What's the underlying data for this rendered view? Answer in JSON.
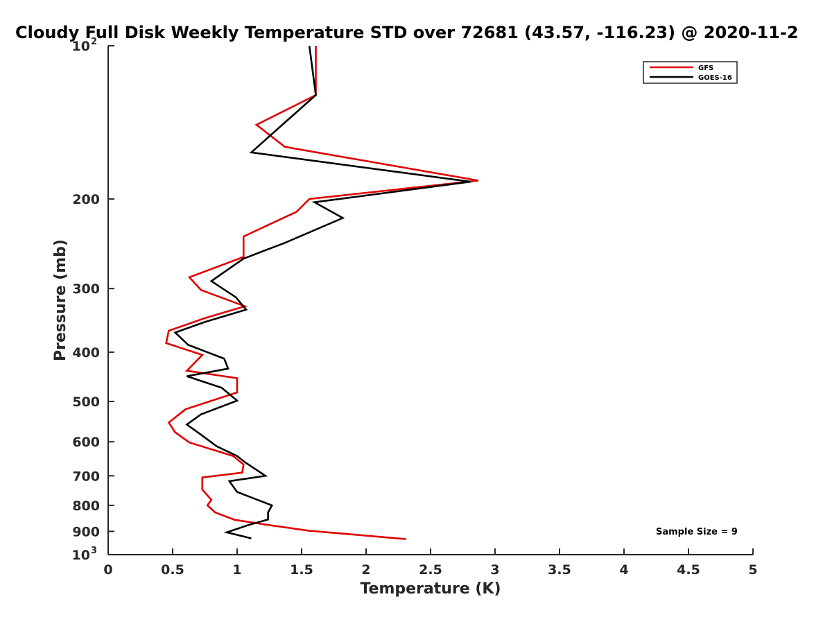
{
  "chart_data": {
    "type": "line",
    "title": "Cloudy Full Disk Weekly Temperature STD over 72681 (43.57, -116.23) @ 2020-11-2",
    "xlabel": "Temperature (K)",
    "ylabel": "Pressure (mb)",
    "xlim": [
      0,
      5
    ],
    "ylim": [
      100,
      1000
    ],
    "y_scale": "log",
    "y_reversed": true,
    "x_ticks": [
      "0",
      "0.5",
      "1",
      "1.5",
      "2",
      "2.5",
      "3",
      "3.5",
      "4",
      "4.5",
      "5"
    ],
    "y_ticks": [
      {
        "value": 100,
        "base": "10",
        "exp": "2"
      },
      {
        "value": 200,
        "label": "200"
      },
      {
        "value": 300,
        "label": "300"
      },
      {
        "value": 400,
        "label": "400"
      },
      {
        "value": 500,
        "label": "500"
      },
      {
        "value": 600,
        "label": "600"
      },
      {
        "value": 700,
        "label": "700"
      },
      {
        "value": 800,
        "label": "800"
      },
      {
        "value": 900,
        "label": "900"
      },
      {
        "value": 1000,
        "base": "10",
        "exp": "3"
      }
    ],
    "grid": false,
    "legend_position": "top-right",
    "annotation": "Sample Size = 9",
    "series": [
      {
        "name": "GFS",
        "color": "#e00000",
        "points": [
          [
            1.61,
            100
          ],
          [
            1.61,
            125
          ],
          [
            1.15,
            143
          ],
          [
            1.37,
            158
          ],
          [
            2.87,
            184
          ],
          [
            1.56,
            200
          ],
          [
            1.46,
            212
          ],
          [
            1.05,
            237
          ],
          [
            1.05,
            260
          ],
          [
            0.63,
            285
          ],
          [
            0.72,
            302
          ],
          [
            1.06,
            325
          ],
          [
            0.75,
            343
          ],
          [
            0.47,
            363
          ],
          [
            0.45,
            384
          ],
          [
            0.73,
            405
          ],
          [
            0.61,
            435
          ],
          [
            1.0,
            450
          ],
          [
            1.0,
            480
          ],
          [
            0.6,
            518
          ],
          [
            0.47,
            550
          ],
          [
            0.52,
            575
          ],
          [
            0.63,
            602
          ],
          [
            0.97,
            640
          ],
          [
            1.05,
            665
          ],
          [
            1.04,
            690
          ],
          [
            0.73,
            705
          ],
          [
            0.73,
            745
          ],
          [
            0.8,
            780
          ],
          [
            0.77,
            800
          ],
          [
            0.83,
            826
          ],
          [
            0.98,
            854
          ],
          [
            1.2,
            871
          ],
          [
            1.55,
            897
          ],
          [
            2.31,
            932
          ]
        ]
      },
      {
        "name": "GOES-16",
        "color": "#000000",
        "points": [
          [
            1.56,
            100
          ],
          [
            1.61,
            125
          ],
          [
            1.31,
            146
          ],
          [
            1.11,
            162
          ],
          [
            2.81,
            185
          ],
          [
            1.6,
            203
          ],
          [
            1.82,
            218
          ],
          [
            1.37,
            244
          ],
          [
            1.05,
            262
          ],
          [
            0.8,
            290
          ],
          [
            0.99,
            312
          ],
          [
            1.07,
            330
          ],
          [
            0.75,
            349
          ],
          [
            0.52,
            366
          ],
          [
            0.62,
            387
          ],
          [
            0.9,
            412
          ],
          [
            0.93,
            431
          ],
          [
            0.61,
            446
          ],
          [
            0.88,
            470
          ],
          [
            1.0,
            498
          ],
          [
            0.72,
            530
          ],
          [
            0.61,
            555
          ],
          [
            0.72,
            581
          ],
          [
            0.84,
            612
          ],
          [
            1.0,
            640
          ],
          [
            1.06,
            658
          ],
          [
            1.22,
            700
          ],
          [
            0.94,
            717
          ],
          [
            1.0,
            753
          ],
          [
            1.27,
            800
          ],
          [
            1.24,
            826
          ],
          [
            1.24,
            853
          ],
          [
            1.09,
            874
          ],
          [
            0.92,
            904
          ],
          [
            1.11,
            929
          ]
        ]
      }
    ]
  }
}
